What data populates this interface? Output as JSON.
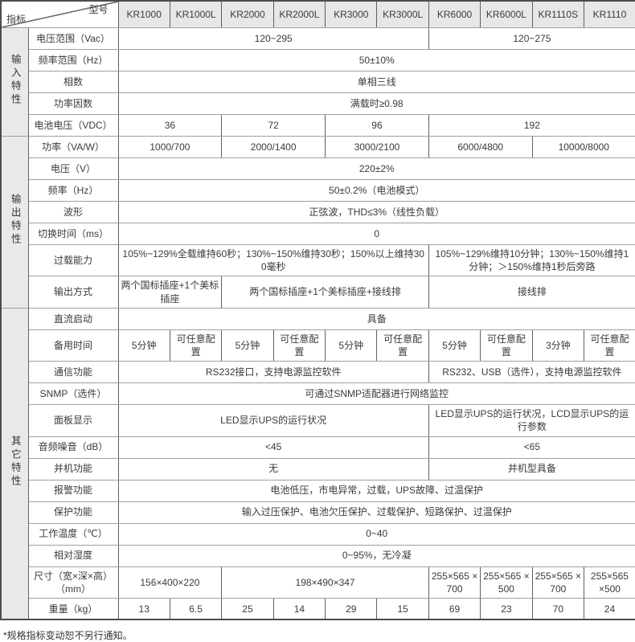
{
  "header": {
    "corner_top": "型号",
    "corner_bottom": "指标",
    "models": [
      "KR1000",
      "KR1000L",
      "KR2000",
      "KR2000L",
      "KR3000",
      "KR3000L",
      "KR6000",
      "KR6000L",
      "KR1110S",
      "KR1110"
    ]
  },
  "groups": [
    {
      "label": "输入特性",
      "rows": [
        {
          "label": "电压范围（Vac）",
          "cells": [
            {
              "text": "120~295",
              "span": 6
            },
            {
              "text": "120~275",
              "span": 4
            }
          ]
        },
        {
          "label": "频率范围（Hz）",
          "cells": [
            {
              "text": "50±10%",
              "span": 10
            }
          ]
        },
        {
          "label": "相数",
          "cells": [
            {
              "text": "单相三线",
              "span": 10
            }
          ]
        },
        {
          "label": "功率因数",
          "cells": [
            {
              "text": "满载时≥0.98",
              "span": 10
            }
          ]
        },
        {
          "label": "电池电压（VDC）",
          "cells": [
            {
              "text": "36",
              "span": 2
            },
            {
              "text": "72",
              "span": 2
            },
            {
              "text": "96",
              "span": 2
            },
            {
              "text": "192",
              "span": 4
            }
          ]
        }
      ]
    },
    {
      "label": "输出特性",
      "rows": [
        {
          "label": "功率（VA/W）",
          "cells": [
            {
              "text": "1000/700",
              "span": 2
            },
            {
              "text": "2000/1400",
              "span": 2
            },
            {
              "text": "3000/2100",
              "span": 2
            },
            {
              "text": "6000/4800",
              "span": 2
            },
            {
              "text": "10000/8000",
              "span": 2
            }
          ]
        },
        {
          "label": "电压（V）",
          "cells": [
            {
              "text": "220±2%",
              "span": 10
            }
          ]
        },
        {
          "label": "频率（Hz）",
          "cells": [
            {
              "text": "50±0.2%（电池模式）",
              "span": 10
            }
          ]
        },
        {
          "label": "波形",
          "cells": [
            {
              "text": "正弦波，THD≤3%（线性负载）",
              "span": 10
            }
          ]
        },
        {
          "label": "切换时间（ms）",
          "cells": [
            {
              "text": "0",
              "span": 10
            }
          ]
        },
        {
          "label": "过载能力",
          "cells": [
            {
              "text": "105%~129%全载维持60秒；130%~150%维持30秒；150%以上维持300毫秒",
              "span": 6
            },
            {
              "text": "105%~129%维持10分钟；130%~150%维持1分钟；＞150%维持1秒后旁路",
              "span": 4
            }
          ]
        },
        {
          "label": "输出方式",
          "cells": [
            {
              "text": "两个国标插座+1个美标插座",
              "span": 2
            },
            {
              "text": "两个国标插座+1个美标插座+接线排",
              "span": 4
            },
            {
              "text": "接线排",
              "span": 4
            }
          ]
        }
      ]
    },
    {
      "label": "其它特性",
      "rows": [
        {
          "label": "直流启动",
          "cells": [
            {
              "text": "具备",
              "span": 10
            }
          ]
        },
        {
          "label": "备用时间",
          "cells": [
            {
              "text": "5分钟",
              "span": 1
            },
            {
              "text": "可任意配置",
              "span": 1
            },
            {
              "text": "5分钟",
              "span": 1
            },
            {
              "text": "可任意配置",
              "span": 1
            },
            {
              "text": "5分钟",
              "span": 1
            },
            {
              "text": "可任意配置",
              "span": 1
            },
            {
              "text": "5分钟",
              "span": 1
            },
            {
              "text": "可任意配置",
              "span": 1
            },
            {
              "text": "3分钟",
              "span": 1
            },
            {
              "text": "可任意配置",
              "span": 1
            }
          ]
        },
        {
          "label": "通信功能",
          "cells": [
            {
              "text": "RS232接口，支持电源监控软件",
              "span": 6
            },
            {
              "text": "RS232、USB（选件），支持电源监控软件",
              "span": 4
            }
          ]
        },
        {
          "label": "SNMP（选件）",
          "cells": [
            {
              "text": "可通过SNMP适配器进行网络监控",
              "span": 10
            }
          ]
        },
        {
          "label": "面板显示",
          "cells": [
            {
              "text": "LED显示UPS的运行状况",
              "span": 6
            },
            {
              "text": "LED显示UPS的运行状况，LCD显示UPS的运行参数",
              "span": 4
            }
          ]
        },
        {
          "label": "音频噪音（dB）",
          "cells": [
            {
              "text": "<45",
              "span": 6
            },
            {
              "text": "<65",
              "span": 4
            }
          ]
        },
        {
          "label": "并机功能",
          "cells": [
            {
              "text": "无",
              "span": 6
            },
            {
              "text": "并机型具备",
              "span": 4
            }
          ]
        },
        {
          "label": "报警功能",
          "cells": [
            {
              "text": "电池低压，市电异常，过载，UPS故障、过温保护",
              "span": 10
            }
          ]
        },
        {
          "label": "保护功能",
          "cells": [
            {
              "text": "输入过压保护、电池欠压保护、过载保护、短路保护、过温保护",
              "span": 10
            }
          ]
        },
        {
          "label": "工作温度（℃）",
          "cells": [
            {
              "text": "0~40",
              "span": 10
            }
          ]
        },
        {
          "label": "相对湿度",
          "cells": [
            {
              "text": "0~95%，无冷凝",
              "span": 10
            }
          ]
        },
        {
          "label": "尺寸（宽×深×高）（mm）",
          "cells": [
            {
              "text": "156×400×220",
              "span": 2
            },
            {
              "text": "198×490×347",
              "span": 4
            },
            {
              "text": "255×565 ×700",
              "span": 1
            },
            {
              "text": "255×565 ×500",
              "span": 1
            },
            {
              "text": "255×565 ×700",
              "span": 1
            },
            {
              "text": "255×565 ×500",
              "span": 1
            }
          ]
        },
        {
          "label": "重量（kg）",
          "cells": [
            {
              "text": "13",
              "span": 1
            },
            {
              "text": "6.5",
              "span": 1
            },
            {
              "text": "25",
              "span": 1
            },
            {
              "text": "14",
              "span": 1
            },
            {
              "text": "29",
              "span": 1
            },
            {
              "text": "15",
              "span": 1
            },
            {
              "text": "69",
              "span": 1
            },
            {
              "text": "23",
              "span": 1
            },
            {
              "text": "70",
              "span": 1
            },
            {
              "text": "24",
              "span": 1
            }
          ]
        }
      ]
    }
  ],
  "footer_note": "*规格指标变动恕不另行通知。"
}
